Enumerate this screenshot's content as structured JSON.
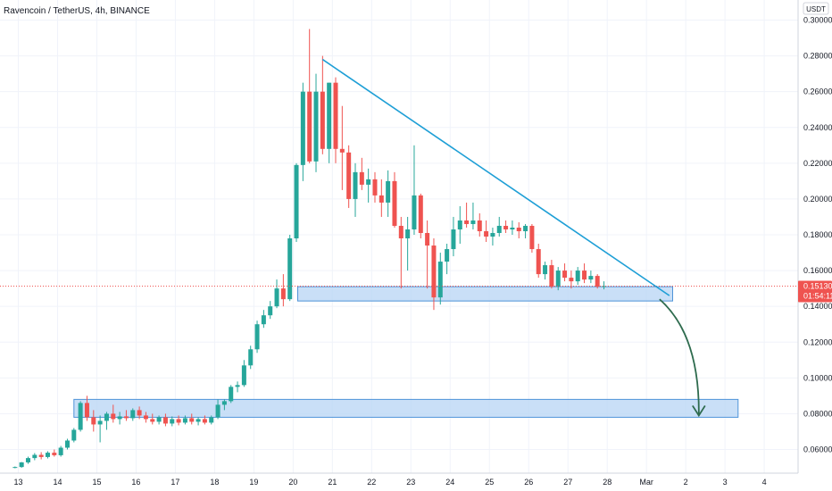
{
  "chart_data": {
    "type": "candlestick",
    "title": "Ravencoin / TetherUS, 4h, BINANCE",
    "y_unit": "USDT",
    "ylim": [
      0.045,
      0.305
    ],
    "y_ticks": [
      "0.30000",
      "0.28000",
      "0.26000",
      "0.24000",
      "0.22000",
      "0.20000",
      "0.18000",
      "0.16000",
      "0.14000",
      "0.12000",
      "0.10000",
      "0.08000",
      "0.06000"
    ],
    "x_ticks": [
      {
        "label": "13",
        "pos": 0.5
      },
      {
        "label": "14",
        "pos": 6.5
      },
      {
        "label": "15",
        "pos": 12.5
      },
      {
        "label": "16",
        "pos": 18.5
      },
      {
        "label": "17",
        "pos": 24.5
      },
      {
        "label": "18",
        "pos": 30.5
      },
      {
        "label": "19",
        "pos": 36.5
      },
      {
        "label": "20",
        "pos": 42.5
      },
      {
        "label": "21",
        "pos": 48.5
      },
      {
        "label": "22",
        "pos": 54.5
      },
      {
        "label": "23",
        "pos": 60.5
      },
      {
        "label": "24",
        "pos": 66.5
      },
      {
        "label": "25",
        "pos": 72.5
      },
      {
        "label": "26",
        "pos": 78.5
      },
      {
        "label": "27",
        "pos": 84.5
      },
      {
        "label": "28",
        "pos": 90.5
      },
      {
        "label": "Mar",
        "pos": 96.5
      },
      {
        "label": "2",
        "pos": 102.5
      },
      {
        "label": "3",
        "pos": 108.5
      },
      {
        "label": "4",
        "pos": 114.5
      }
    ],
    "last_price": "0.15130",
    "countdown": "01:54:11",
    "candles": [
      [
        0.05,
        0.0505,
        0.0495,
        0.0502
      ],
      [
        0.0502,
        0.053,
        0.0498,
        0.0528
      ],
      [
        0.0528,
        0.056,
        0.052,
        0.0552
      ],
      [
        0.0552,
        0.058,
        0.054,
        0.057
      ],
      [
        0.057,
        0.0585,
        0.0545,
        0.0558
      ],
      [
        0.0558,
        0.059,
        0.055,
        0.0582
      ],
      [
        0.0582,
        0.06,
        0.056,
        0.0568
      ],
      [
        0.0568,
        0.062,
        0.056,
        0.061
      ],
      [
        0.061,
        0.066,
        0.06,
        0.065
      ],
      [
        0.065,
        0.072,
        0.064,
        0.071
      ],
      [
        0.071,
        0.087,
        0.07,
        0.086
      ],
      [
        0.086,
        0.09,
        0.076,
        0.078
      ],
      [
        0.078,
        0.082,
        0.07,
        0.074
      ],
      [
        0.074,
        0.079,
        0.064,
        0.076
      ],
      [
        0.076,
        0.081,
        0.071,
        0.08
      ],
      [
        0.08,
        0.085,
        0.075,
        0.077
      ],
      [
        0.077,
        0.081,
        0.074,
        0.0785
      ],
      [
        0.0785,
        0.082,
        0.076,
        0.0775
      ],
      [
        0.0775,
        0.083,
        0.076,
        0.082
      ],
      [
        0.082,
        0.084,
        0.077,
        0.079
      ],
      [
        0.079,
        0.081,
        0.075,
        0.077
      ],
      [
        0.077,
        0.08,
        0.074,
        0.0755
      ],
      [
        0.0755,
        0.079,
        0.074,
        0.078
      ],
      [
        0.078,
        0.08,
        0.073,
        0.0745
      ],
      [
        0.0745,
        0.0785,
        0.073,
        0.077
      ],
      [
        0.077,
        0.079,
        0.0735,
        0.075
      ],
      [
        0.075,
        0.079,
        0.074,
        0.0775
      ],
      [
        0.0775,
        0.08,
        0.074,
        0.0755
      ],
      [
        0.0755,
        0.078,
        0.0735,
        0.077
      ],
      [
        0.077,
        0.079,
        0.074,
        0.075
      ],
      [
        0.075,
        0.079,
        0.074,
        0.078
      ],
      [
        0.078,
        0.088,
        0.077,
        0.085
      ],
      [
        0.085,
        0.088,
        0.082,
        0.087
      ],
      [
        0.087,
        0.096,
        0.086,
        0.095
      ],
      [
        0.095,
        0.098,
        0.092,
        0.096
      ],
      [
        0.096,
        0.11,
        0.095,
        0.107
      ],
      [
        0.107,
        0.118,
        0.105,
        0.116
      ],
      [
        0.116,
        0.132,
        0.114,
        0.13
      ],
      [
        0.13,
        0.138,
        0.128,
        0.135
      ],
      [
        0.135,
        0.143,
        0.133,
        0.14
      ],
      [
        0.14,
        0.155,
        0.139,
        0.15
      ],
      [
        0.15,
        0.158,
        0.14,
        0.144
      ],
      [
        0.144,
        0.18,
        0.143,
        0.178
      ],
      [
        0.178,
        0.22,
        0.176,
        0.219
      ],
      [
        0.219,
        0.265,
        0.21,
        0.26
      ],
      [
        0.26,
        0.295,
        0.22,
        0.221
      ],
      [
        0.221,
        0.27,
        0.215,
        0.26
      ],
      [
        0.26,
        0.28,
        0.225,
        0.228
      ],
      [
        0.228,
        0.265,
        0.22,
        0.265
      ],
      [
        0.265,
        0.268,
        0.22,
        0.228
      ],
      [
        0.228,
        0.252,
        0.205,
        0.226
      ],
      [
        0.226,
        0.23,
        0.195,
        0.2
      ],
      [
        0.2,
        0.22,
        0.19,
        0.215
      ],
      [
        0.215,
        0.223,
        0.205,
        0.208
      ],
      [
        0.208,
        0.217,
        0.198,
        0.211
      ],
      [
        0.211,
        0.215,
        0.198,
        0.202
      ],
      [
        0.202,
        0.211,
        0.19,
        0.198
      ],
      [
        0.198,
        0.216,
        0.19,
        0.21
      ],
      [
        0.21,
        0.215,
        0.184,
        0.185
      ],
      [
        0.185,
        0.19,
        0.15,
        0.178
      ],
      [
        0.178,
        0.19,
        0.16,
        0.183
      ],
      [
        0.183,
        0.23,
        0.18,
        0.202
      ],
      [
        0.202,
        0.203,
        0.178,
        0.181
      ],
      [
        0.181,
        0.188,
        0.15,
        0.174
      ],
      [
        0.174,
        0.178,
        0.138,
        0.145
      ],
      [
        0.145,
        0.17,
        0.141,
        0.165
      ],
      [
        0.165,
        0.175,
        0.158,
        0.172
      ],
      [
        0.172,
        0.19,
        0.168,
        0.183
      ],
      [
        0.183,
        0.196,
        0.175,
        0.188
      ],
      [
        0.188,
        0.198,
        0.184,
        0.186
      ],
      [
        0.186,
        0.198,
        0.183,
        0.188
      ],
      [
        0.188,
        0.192,
        0.179,
        0.182
      ],
      [
        0.182,
        0.188,
        0.176,
        0.179
      ],
      [
        0.179,
        0.184,
        0.174,
        0.181
      ],
      [
        0.181,
        0.19,
        0.179,
        0.185
      ],
      [
        0.185,
        0.188,
        0.181,
        0.183
      ],
      [
        0.183,
        0.188,
        0.18,
        0.184
      ],
      [
        0.184,
        0.187,
        0.178,
        0.182
      ],
      [
        0.182,
        0.186,
        0.178,
        0.185
      ],
      [
        0.185,
        0.186,
        0.17,
        0.172
      ],
      [
        0.172,
        0.175,
        0.156,
        0.158
      ],
      [
        0.158,
        0.165,
        0.155,
        0.163
      ],
      [
        0.163,
        0.166,
        0.15,
        0.151
      ],
      [
        0.151,
        0.162,
        0.149,
        0.16
      ],
      [
        0.16,
        0.164,
        0.154,
        0.156
      ],
      [
        0.156,
        0.16,
        0.15,
        0.154
      ],
      [
        0.154,
        0.162,
        0.152,
        0.16
      ],
      [
        0.16,
        0.164,
        0.153,
        0.155
      ],
      [
        0.155,
        0.16,
        0.153,
        0.157
      ],
      [
        0.157,
        0.158,
        0.15,
        0.151
      ],
      [
        0.151,
        0.154,
        0.1495,
        0.1513
      ]
    ],
    "zones": [
      {
        "x_start": 43.2,
        "x_end": 100.5,
        "y_low": 0.143,
        "y_high": 0.151
      },
      {
        "x_start": 9.0,
        "x_end": 110.5,
        "y_low": 0.078,
        "y_high": 0.088
      }
    ],
    "trendline": {
      "x0": 47.0,
      "y0": 0.278,
      "x1": 100.0,
      "y1": 0.146
    },
    "projection_arrow": {
      "x0": 98.5,
      "y0": 0.144,
      "x1": 104.5,
      "y1": 0.079
    },
    "colors": {
      "up": "#26a69a",
      "down": "#ef5350",
      "trendline": "#1e9fd6",
      "zone_fill": "#bbd7f5",
      "zone_border": "#4f94d9",
      "arrow": "#2e6b4e",
      "price_tag": "#ef5350",
      "grid": "#f0f3fa"
    }
  }
}
